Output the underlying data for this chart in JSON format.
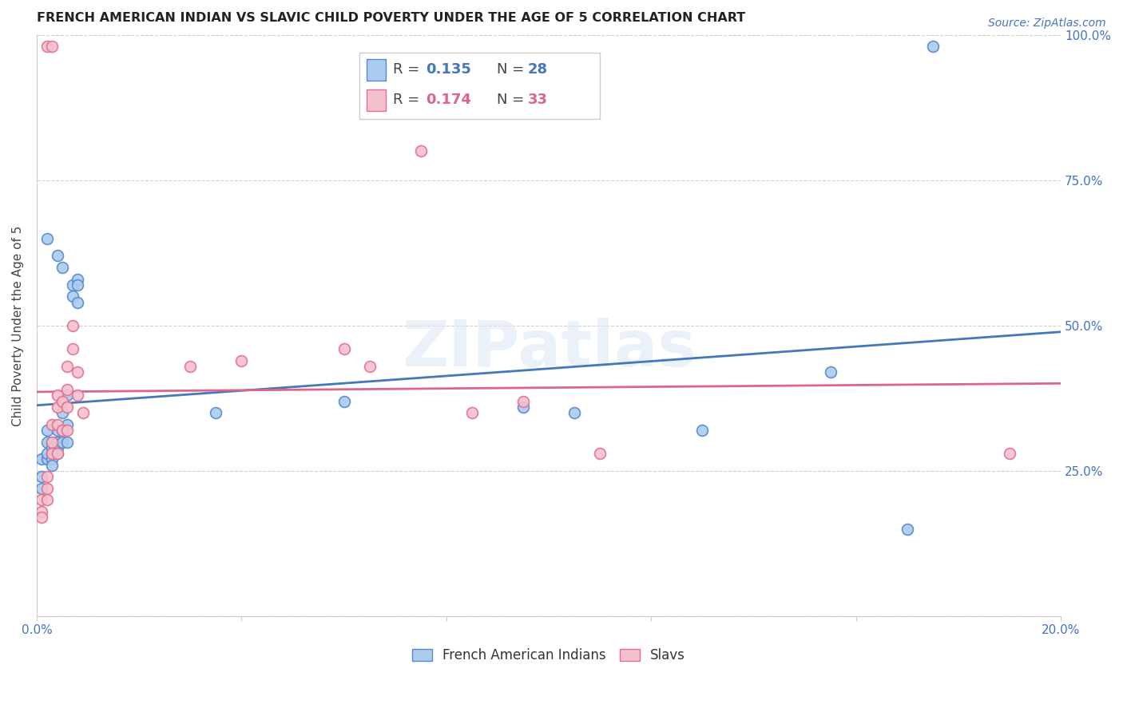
{
  "title": "FRENCH AMERICAN INDIAN VS SLAVIC CHILD POVERTY UNDER THE AGE OF 5 CORRELATION CHART",
  "source": "Source: ZipAtlas.com",
  "ylabel": "Child Poverty Under the Age of 5",
  "xlim": [
    0.0,
    0.2
  ],
  "ylim": [
    0.0,
    1.0
  ],
  "xticks": [
    0.0,
    0.04,
    0.08,
    0.12,
    0.16,
    0.2
  ],
  "xtick_labels": [
    "0.0%",
    "",
    "",
    "",
    "",
    "20.0%"
  ],
  "ytick_positions": [
    0.0,
    0.25,
    0.5,
    0.75,
    1.0
  ],
  "ytick_labels": [
    "",
    "25.0%",
    "50.0%",
    "75.0%",
    "100.0%"
  ],
  "grid_color": "#d0d0d0",
  "background_color": "#ffffff",
  "blue_fill": "#aaccee",
  "blue_edge": "#5588cc",
  "pink_fill": "#f5c0ce",
  "pink_edge": "#e07090",
  "blue_line": "#4477bb",
  "pink_line": "#dd6688",
  "watermark": "ZIPatlas",
  "legend_r1": "0.135",
  "legend_n1": "28",
  "legend_r2": "0.174",
  "legend_n2": "33",
  "label1": "French American Indians",
  "label2": "Slavs",
  "french_x": [
    0.001,
    0.001,
    0.001,
    0.002,
    0.002,
    0.002,
    0.002,
    0.003,
    0.003,
    0.003,
    0.003,
    0.003,
    0.004,
    0.004,
    0.004,
    0.004,
    0.005,
    0.005,
    0.005,
    0.006,
    0.006,
    0.007,
    0.007,
    0.008,
    0.008,
    0.008,
    0.035,
    0.06,
    0.095,
    0.105,
    0.13,
    0.155,
    0.17,
    0.175,
    0.002,
    0.004,
    0.005,
    0.006
  ],
  "french_y": [
    0.22,
    0.24,
    0.27,
    0.27,
    0.28,
    0.3,
    0.32,
    0.3,
    0.29,
    0.28,
    0.27,
    0.26,
    0.32,
    0.3,
    0.29,
    0.28,
    0.35,
    0.32,
    0.3,
    0.33,
    0.3,
    0.57,
    0.55,
    0.58,
    0.57,
    0.54,
    0.35,
    0.37,
    0.36,
    0.35,
    0.32,
    0.42,
    0.15,
    0.98,
    0.65,
    0.62,
    0.6,
    0.38
  ],
  "slavic_x": [
    0.001,
    0.001,
    0.001,
    0.002,
    0.002,
    0.002,
    0.003,
    0.003,
    0.003,
    0.004,
    0.004,
    0.004,
    0.004,
    0.005,
    0.005,
    0.006,
    0.006,
    0.006,
    0.006,
    0.007,
    0.007,
    0.008,
    0.008,
    0.009,
    0.03,
    0.04,
    0.06,
    0.065,
    0.075,
    0.085,
    0.095,
    0.11,
    0.19,
    0.002,
    0.003
  ],
  "slavic_y": [
    0.2,
    0.18,
    0.17,
    0.24,
    0.22,
    0.2,
    0.33,
    0.3,
    0.28,
    0.38,
    0.36,
    0.33,
    0.28,
    0.37,
    0.32,
    0.43,
    0.39,
    0.36,
    0.32,
    0.5,
    0.46,
    0.42,
    0.38,
    0.35,
    0.43,
    0.44,
    0.46,
    0.43,
    0.8,
    0.35,
    0.37,
    0.28,
    0.28,
    0.98,
    0.98
  ],
  "title_fontsize": 11.5,
  "axis_label_fontsize": 11,
  "tick_fontsize": 11,
  "source_fontsize": 10,
  "marker_size": 100
}
